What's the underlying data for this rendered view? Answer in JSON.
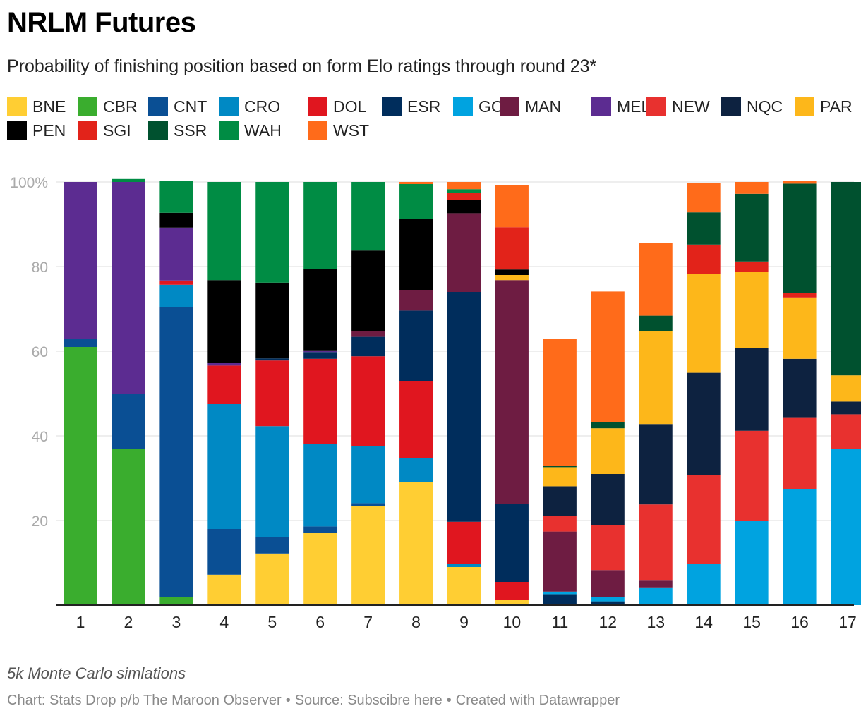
{
  "title": "NRLM Futures",
  "subtitle": "Probability of finishing position based on form Elo ratings through round 23*",
  "note": "5k Monte Carlo simlations",
  "footer": {
    "chart": "Chart: Stats Drop p/b The Maroon Observer",
    "separator": "•",
    "source": "Source: Subscibre here",
    "created": "Created with Datawrapper"
  },
  "chart_data": {
    "type": "bar",
    "stacked": true,
    "title": "NRLM Futures",
    "xlabel": "",
    "ylabel": "",
    "ylim": [
      0,
      100
    ],
    "y_ticks": [
      "100%",
      "80",
      "60",
      "40",
      "20"
    ],
    "grid": true,
    "legend_position": "top",
    "categories": [
      "1",
      "2",
      "3",
      "4",
      "5",
      "6",
      "7",
      "8",
      "9",
      "10",
      "11",
      "12",
      "13",
      "14",
      "15",
      "16",
      "17"
    ],
    "series": [
      {
        "name": "BNE",
        "color": "#FFCE33",
        "values": [
          0,
          0,
          0,
          7.2,
          12.2,
          17,
          23.5,
          29,
          9,
          1.2,
          0,
          0,
          0,
          0,
          0,
          0,
          0
        ]
      },
      {
        "name": "CBR",
        "color": "#3AAD2E",
        "values": [
          61,
          37,
          2,
          0,
          0,
          0,
          0,
          0,
          0,
          0,
          0,
          0,
          0,
          0,
          0,
          0,
          0
        ]
      },
      {
        "name": "CNT",
        "color": "#0A4F94",
        "values": [
          2,
          13,
          68.5,
          10.8,
          3.8,
          1.6,
          0.6,
          0,
          0,
          0,
          0,
          0,
          0,
          0,
          0,
          0,
          0
        ]
      },
      {
        "name": "CRO",
        "color": "#0089C4",
        "values": [
          0,
          0,
          5.2,
          29.5,
          26.3,
          19.4,
          13.5,
          5.8,
          0.8,
          0,
          0,
          0,
          0,
          0,
          0,
          0,
          0
        ]
      },
      {
        "name": "DOL",
        "color": "#E0161F",
        "values": [
          0,
          0,
          1,
          9.1,
          15.5,
          20.2,
          21.2,
          18.2,
          9.9,
          4.3,
          0,
          0,
          0,
          0,
          0,
          0,
          0
        ]
      },
      {
        "name": "ESR",
        "color": "#002D5C",
        "values": [
          0,
          0,
          0,
          0,
          0.5,
          1.6,
          4.6,
          16.6,
          54.3,
          18.5,
          2.6,
          0.9,
          0,
          0,
          0,
          0,
          0
        ]
      },
      {
        "name": "GCT",
        "color": "#00A3E0",
        "values": [
          0,
          0,
          0,
          0,
          0,
          0,
          0,
          0,
          0,
          0,
          0.6,
          1.1,
          4.2,
          9.8,
          20,
          27.4,
          37
        ]
      },
      {
        "name": "MAN",
        "color": "#6E1C42",
        "values": [
          0,
          0,
          0,
          0,
          0,
          0,
          1.4,
          4.9,
          18.6,
          52.8,
          14.2,
          6.3,
          1.6,
          0,
          0,
          0,
          0
        ]
      },
      {
        "name": "MEL",
        "color": "#5C2C91",
        "values": [
          37,
          50,
          12.5,
          0.6,
          0,
          0.4,
          0,
          0,
          0,
          0,
          0,
          0,
          0,
          0,
          0,
          0,
          0
        ]
      },
      {
        "name": "NEW",
        "color": "#E8312F",
        "values": [
          0,
          0,
          0,
          0,
          0,
          0,
          0,
          0,
          0,
          0,
          3.7,
          10.7,
          18,
          21,
          21.2,
          17,
          8.1
        ]
      },
      {
        "name": "NQC",
        "color": "#0D2240",
        "values": [
          0,
          0,
          0,
          0,
          0,
          0,
          0,
          0,
          0,
          0,
          7,
          12,
          19,
          24.1,
          19.6,
          13.8,
          3
        ]
      },
      {
        "name": "PAR",
        "color": "#FDB71A",
        "values": [
          0,
          0,
          0,
          0,
          0,
          0,
          0,
          0,
          0,
          1.2,
          4.5,
          10.8,
          22,
          23.4,
          17.9,
          14.5,
          6.2
        ]
      },
      {
        "name": "PEN",
        "color": "#000000",
        "values": [
          0,
          0,
          3.5,
          19.6,
          17.9,
          19.2,
          19,
          16.7,
          3.2,
          1.3,
          0,
          0,
          0,
          0,
          0,
          0,
          0
        ]
      },
      {
        "name": "SGI",
        "color": "#E2231A",
        "values": [
          0,
          0,
          0,
          0,
          0,
          0,
          0,
          0,
          1.6,
          10,
          0,
          0,
          0,
          6.9,
          2.5,
          1.1,
          0
        ]
      },
      {
        "name": "SSR",
        "color": "#00512F",
        "values": [
          0,
          0,
          0,
          0,
          0,
          0,
          0,
          0,
          0,
          0,
          0.4,
          1.5,
          3.6,
          7.6,
          16,
          25.8,
          45.7
        ]
      },
      {
        "name": "WAH",
        "color": "#008C44",
        "values": [
          0,
          0.7,
          7.5,
          23.2,
          23.8,
          20.6,
          16.2,
          8.3,
          0.9,
          0,
          0,
          0,
          0,
          0,
          0,
          0,
          0
        ]
      },
      {
        "name": "WST",
        "color": "#FF6B1A",
        "values": [
          0,
          0,
          0,
          0,
          0,
          0,
          0,
          0.5,
          1.7,
          9.9,
          29.9,
          30.8,
          17.2,
          6.9,
          2.8,
          0.6,
          0
        ]
      }
    ]
  }
}
